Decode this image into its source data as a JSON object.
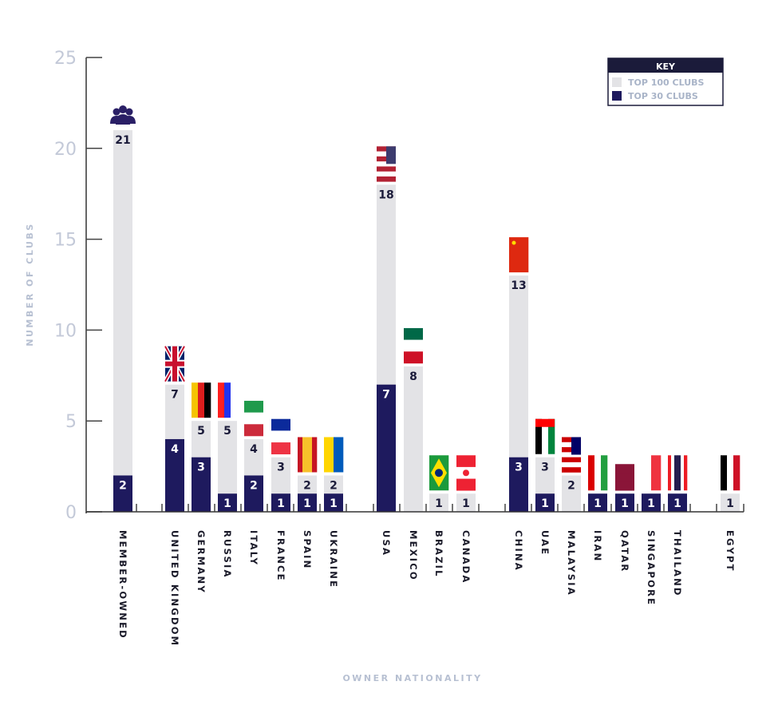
{
  "chart_data": {
    "type": "bar",
    "stacking": "overlapped",
    "ylabel": "NUMBER OF CLUBS",
    "xlabel": "OWNER NATIONALITY",
    "ylim": [
      0,
      25
    ],
    "yticks": [
      0,
      5,
      10,
      15,
      20,
      25
    ],
    "grid": false,
    "legend": {
      "title": "KEY",
      "placement": "top-right"
    },
    "categories": [
      "MEMBER-OWNED",
      "UNITED KINGDOM",
      "GERMANY",
      "RUSSIA",
      "ITALY",
      "FRANCE",
      "SPAIN",
      "UKRAINE",
      "USA",
      "MEXICO",
      "BRAZIL",
      "CANADA",
      "CHINA",
      "UAE",
      "MALAYSIA",
      "IRAN",
      "QATAR",
      "SINGAPORE",
      "THAILAND",
      "EGYPT"
    ],
    "groups": [
      [
        0
      ],
      [
        1,
        2,
        3,
        4,
        5,
        6,
        7
      ],
      [
        8,
        9,
        10,
        11
      ],
      [
        12,
        13,
        14,
        15,
        16,
        17,
        18
      ],
      [
        19
      ]
    ],
    "series": [
      {
        "name": "TOP 100 CLUBS",
        "color": "#e3e3e6",
        "values": [
          21,
          7,
          5,
          5,
          4,
          3,
          2,
          2,
          18,
          8,
          1,
          1,
          13,
          3,
          2,
          1,
          1,
          1,
          1,
          1
        ]
      },
      {
        "name": "TOP 30 CLUBS",
        "color": "#1e1a5e",
        "values": [
          2,
          4,
          3,
          1,
          2,
          1,
          1,
          1,
          7,
          0,
          0,
          0,
          3,
          1,
          0,
          1,
          1,
          1,
          1,
          0
        ]
      }
    ],
    "markers": [
      "people-icon",
      "flag-uk",
      "flag-germany",
      "flag-russia",
      "flag-italy",
      "flag-france",
      "flag-spain",
      "flag-ukraine",
      "flag-usa",
      "flag-mexico",
      "flag-brazil",
      "flag-canada",
      "flag-china",
      "flag-uae",
      "flag-malaysia",
      "flag-iran",
      "flag-qatar",
      "flag-singapore",
      "flag-thailand",
      "flag-egypt"
    ]
  }
}
